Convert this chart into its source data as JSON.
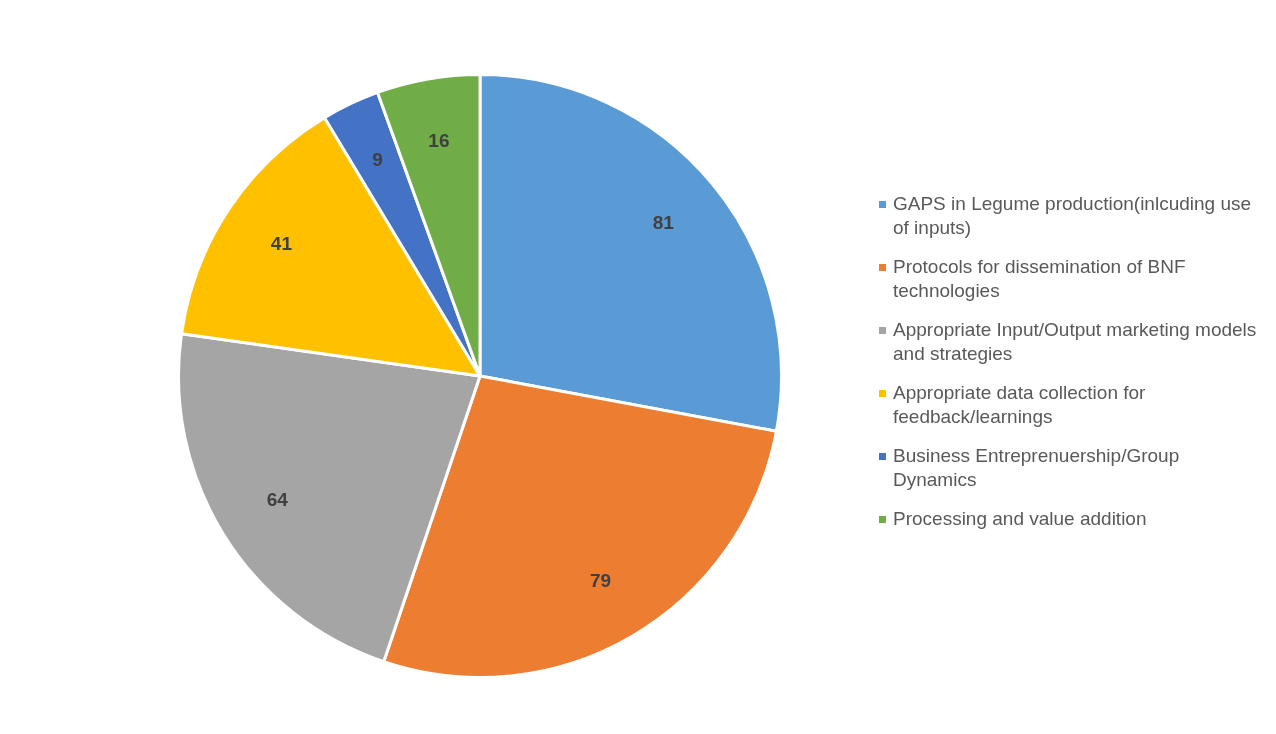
{
  "chart_data": {
    "type": "pie",
    "categories": [
      "GAPS in Legume production(inlcuding use of inputs)",
      "Protocols for dissemination of BNF technologies",
      "Appropriate Input/Output marketing models and strategies",
      "Appropriate data collection for feedback/learnings",
      "Business Entreprenuership/Group Dynamics",
      "Processing and value addition"
    ],
    "values": [
      81,
      79,
      64,
      41,
      9,
      16
    ],
    "colors": [
      "#5b9bd5",
      "#ed7d31",
      "#a5a5a5",
      "#ffc000",
      "#4472c4",
      "#70ad47"
    ],
    "data_labels": true,
    "legend": "right"
  }
}
